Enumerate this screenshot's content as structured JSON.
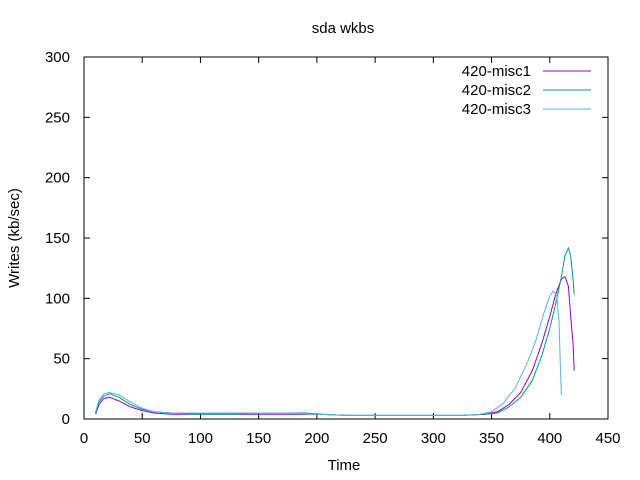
{
  "chart_data": {
    "type": "line",
    "title": "sda wkbs",
    "xlabel": "Time",
    "ylabel": "Writes (kb/sec)",
    "xlim": [
      0,
      450
    ],
    "ylim": [
      0,
      300
    ],
    "xticks": [
      0,
      50,
      100,
      150,
      200,
      250,
      300,
      350,
      400,
      450
    ],
    "yticks": [
      0,
      50,
      100,
      150,
      200,
      250,
      300
    ],
    "grid": false,
    "legend_position": "top-right",
    "series": [
      {
        "name": "420-misc1",
        "color": "#9400d3",
        "points": [
          [
            10,
            4
          ],
          [
            13,
            12
          ],
          [
            17,
            17
          ],
          [
            22,
            18
          ],
          [
            30,
            15
          ],
          [
            40,
            10
          ],
          [
            50,
            7
          ],
          [
            60,
            5
          ],
          [
            75,
            4
          ],
          [
            100,
            4
          ],
          [
            125,
            4
          ],
          [
            150,
            4
          ],
          [
            175,
            4
          ],
          [
            200,
            4
          ],
          [
            225,
            3
          ],
          [
            250,
            3
          ],
          [
            275,
            3
          ],
          [
            300,
            3
          ],
          [
            325,
            3
          ],
          [
            345,
            4
          ],
          [
            355,
            6
          ],
          [
            365,
            12
          ],
          [
            375,
            22
          ],
          [
            385,
            40
          ],
          [
            393,
            62
          ],
          [
            400,
            85
          ],
          [
            405,
            103
          ],
          [
            410,
            116
          ],
          [
            413,
            118
          ],
          [
            416,
            110
          ],
          [
            418,
            85
          ],
          [
            420,
            62
          ],
          [
            421,
            40
          ]
        ]
      },
      {
        "name": "420-misc2",
        "color": "#009e73",
        "points": [
          [
            10,
            5
          ],
          [
            13,
            14
          ],
          [
            17,
            19
          ],
          [
            22,
            21
          ],
          [
            30,
            18
          ],
          [
            40,
            12
          ],
          [
            50,
            8
          ],
          [
            60,
            6
          ],
          [
            75,
            5
          ],
          [
            100,
            4
          ],
          [
            125,
            4
          ],
          [
            150,
            5
          ],
          [
            175,
            5
          ],
          [
            190,
            5
          ],
          [
            205,
            4
          ],
          [
            225,
            3
          ],
          [
            250,
            3
          ],
          [
            275,
            3
          ],
          [
            300,
            3
          ],
          [
            325,
            3
          ],
          [
            345,
            4
          ],
          [
            355,
            5
          ],
          [
            365,
            10
          ],
          [
            375,
            18
          ],
          [
            385,
            32
          ],
          [
            393,
            52
          ],
          [
            400,
            75
          ],
          [
            405,
            95
          ],
          [
            410,
            118
          ],
          [
            413,
            135
          ],
          [
            416,
            142
          ],
          [
            418,
            135
          ],
          [
            420,
            115
          ],
          [
            421,
            103
          ]
        ]
      },
      {
        "name": "420-misc3",
        "color": "#56b4e9",
        "points": [
          [
            10,
            6
          ],
          [
            13,
            16
          ],
          [
            17,
            21
          ],
          [
            22,
            22
          ],
          [
            30,
            20
          ],
          [
            40,
            14
          ],
          [
            50,
            9
          ],
          [
            60,
            6
          ],
          [
            75,
            5
          ],
          [
            100,
            5
          ],
          [
            125,
            5
          ],
          [
            150,
            5
          ],
          [
            175,
            5
          ],
          [
            200,
            4
          ],
          [
            225,
            3
          ],
          [
            250,
            3
          ],
          [
            275,
            3
          ],
          [
            300,
            3
          ],
          [
            325,
            3
          ],
          [
            340,
            4
          ],
          [
            350,
            6
          ],
          [
            360,
            13
          ],
          [
            370,
            25
          ],
          [
            380,
            45
          ],
          [
            388,
            65
          ],
          [
            395,
            88
          ],
          [
            400,
            102
          ],
          [
            403,
            106
          ],
          [
            406,
            102
          ],
          [
            408,
            80
          ],
          [
            409,
            45
          ],
          [
            410,
            20
          ]
        ]
      }
    ]
  }
}
